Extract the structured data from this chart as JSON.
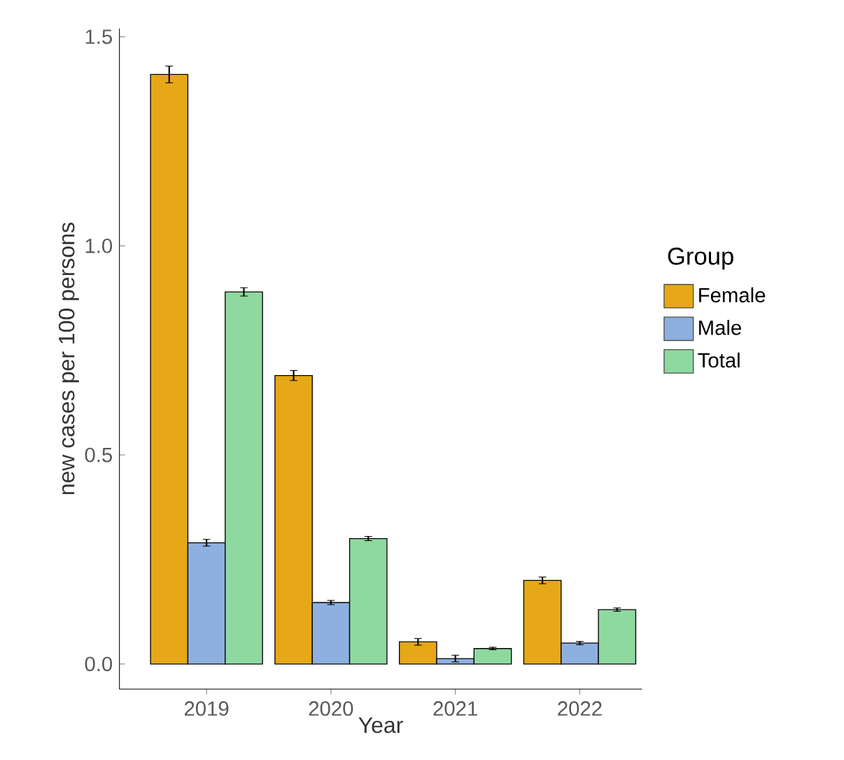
{
  "chart_data": {
    "type": "bar",
    "xlabel": "Year",
    "ylabel": "new cases per 100 persons",
    "legend_title": "Group",
    "categories": [
      "2019",
      "2020",
      "2021",
      "2022"
    ],
    "series": [
      {
        "name": "Female",
        "color": "#e6a817",
        "values": [
          1.41,
          0.69,
          0.053,
          0.2
        ],
        "errors": [
          0.02,
          0.012,
          0.008,
          0.008
        ]
      },
      {
        "name": "Male",
        "color": "#8db0e0",
        "values": [
          0.29,
          0.147,
          0.013,
          0.05
        ],
        "errors": [
          0.008,
          0.005,
          0.008,
          0.004
        ]
      },
      {
        "name": "Total",
        "color": "#8ed9a0",
        "values": [
          0.89,
          0.3,
          0.037,
          0.13
        ],
        "errors": [
          0.01,
          0.005,
          0.003,
          0.004
        ]
      }
    ],
    "ylim": [
      -0.06,
      1.52
    ],
    "yticks": [
      {
        "value": 0,
        "label": "0.0"
      },
      {
        "value": 0.5,
        "label": "0.5"
      },
      {
        "value": 1,
        "label": "1.0"
      },
      {
        "value": 1.5,
        "label": "1.5"
      }
    ],
    "grid": false,
    "legend": "right"
  }
}
